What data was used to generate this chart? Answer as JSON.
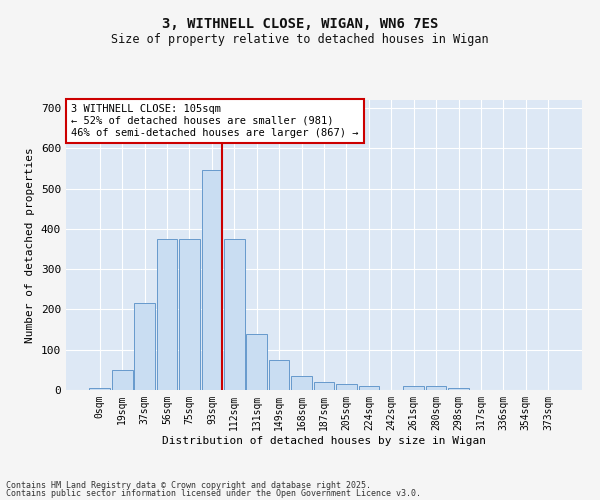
{
  "title_line1": "3, WITHNELL CLOSE, WIGAN, WN6 7ES",
  "title_line2": "Size of property relative to detached houses in Wigan",
  "xlabel": "Distribution of detached houses by size in Wigan",
  "ylabel": "Number of detached properties",
  "bin_labels": [
    "0sqm",
    "19sqm",
    "37sqm",
    "56sqm",
    "75sqm",
    "93sqm",
    "112sqm",
    "131sqm",
    "149sqm",
    "168sqm",
    "187sqm",
    "205sqm",
    "224sqm",
    "242sqm",
    "261sqm",
    "280sqm",
    "298sqm",
    "317sqm",
    "336sqm",
    "354sqm",
    "373sqm"
  ],
  "bar_values": [
    5,
    50,
    215,
    375,
    375,
    545,
    375,
    140,
    75,
    35,
    20,
    15,
    10,
    0,
    10,
    10,
    5,
    0,
    0,
    0,
    0
  ],
  "bar_color": "#c9ddf2",
  "bar_edge_color": "#6699cc",
  "vline_color": "#cc0000",
  "annotation_text": "3 WITHNELL CLOSE: 105sqm\n← 52% of detached houses are smaller (981)\n46% of semi-detached houses are larger (867) →",
  "annotation_box_color": "#ffffff",
  "annotation_box_edge": "#cc0000",
  "ylim": [
    0,
    720
  ],
  "yticks": [
    0,
    100,
    200,
    300,
    400,
    500,
    600,
    700
  ],
  "background_color": "#dde8f5",
  "grid_color": "#ffffff",
  "fig_background": "#f5f5f5",
  "footer_line1": "Contains HM Land Registry data © Crown copyright and database right 2025.",
  "footer_line2": "Contains public sector information licensed under the Open Government Licence v3.0."
}
